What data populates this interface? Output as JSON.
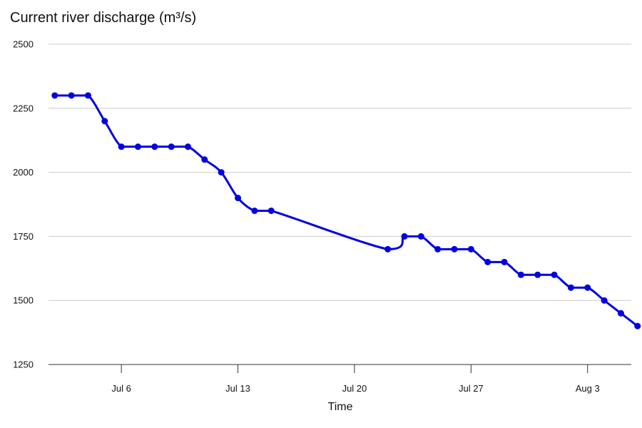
{
  "chart_data": {
    "type": "line",
    "title": "Current river discharge (m³/s)",
    "xlabel": "Time",
    "ylabel": "",
    "ylim": [
      1250,
      2500
    ],
    "yticks": [
      2500,
      2250,
      2000,
      1750,
      1500,
      1250
    ],
    "xlim": [
      "2024-07-01T15:00",
      "2024-08-05T15:00"
    ],
    "xticks": [
      {
        "label": "Jul 6",
        "date": "2024-07-06"
      },
      {
        "label": "Jul 13",
        "date": "2024-07-13"
      },
      {
        "label": "Jul 20",
        "date": "2024-07-20"
      },
      {
        "label": "Jul 27",
        "date": "2024-07-27"
      },
      {
        "label": "Aug 3",
        "date": "2024-08-03"
      }
    ],
    "grid": true,
    "series": [
      {
        "color": "#0000e0",
        "points": [
          {
            "x": "2024-07-02",
            "y": 2300
          },
          {
            "x": "2024-07-03",
            "y": 2300
          },
          {
            "x": "2024-07-04",
            "y": 2300
          },
          {
            "x": "2024-07-05",
            "y": 2200
          },
          {
            "x": "2024-07-06",
            "y": 2100
          },
          {
            "x": "2024-07-07",
            "y": 2100
          },
          {
            "x": "2024-07-08",
            "y": 2100
          },
          {
            "x": "2024-07-09",
            "y": 2100
          },
          {
            "x": "2024-07-10",
            "y": 2100
          },
          {
            "x": "2024-07-11",
            "y": 2050
          },
          {
            "x": "2024-07-12",
            "y": 2000
          },
          {
            "x": "2024-07-13",
            "y": 1900
          },
          {
            "x": "2024-07-14",
            "y": 1850
          },
          {
            "x": "2024-07-15",
            "y": 1850
          },
          {
            "x": "2024-07-22",
            "y": 1700
          },
          {
            "x": "2024-07-23",
            "y": 1750
          },
          {
            "x": "2024-07-24",
            "y": 1750
          },
          {
            "x": "2024-07-25",
            "y": 1700
          },
          {
            "x": "2024-07-26",
            "y": 1700
          },
          {
            "x": "2024-07-27",
            "y": 1700
          },
          {
            "x": "2024-07-28",
            "y": 1650
          },
          {
            "x": "2024-07-29",
            "y": 1650
          },
          {
            "x": "2024-07-30",
            "y": 1600
          },
          {
            "x": "2024-07-31",
            "y": 1600
          },
          {
            "x": "2024-08-01",
            "y": 1600
          },
          {
            "x": "2024-08-02",
            "y": 1550
          },
          {
            "x": "2024-08-03",
            "y": 1550
          },
          {
            "x": "2024-08-04",
            "y": 1500
          },
          {
            "x": "2024-08-05",
            "y": 1450
          },
          {
            "x": "2024-08-06",
            "y": 1400
          }
        ]
      }
    ]
  }
}
